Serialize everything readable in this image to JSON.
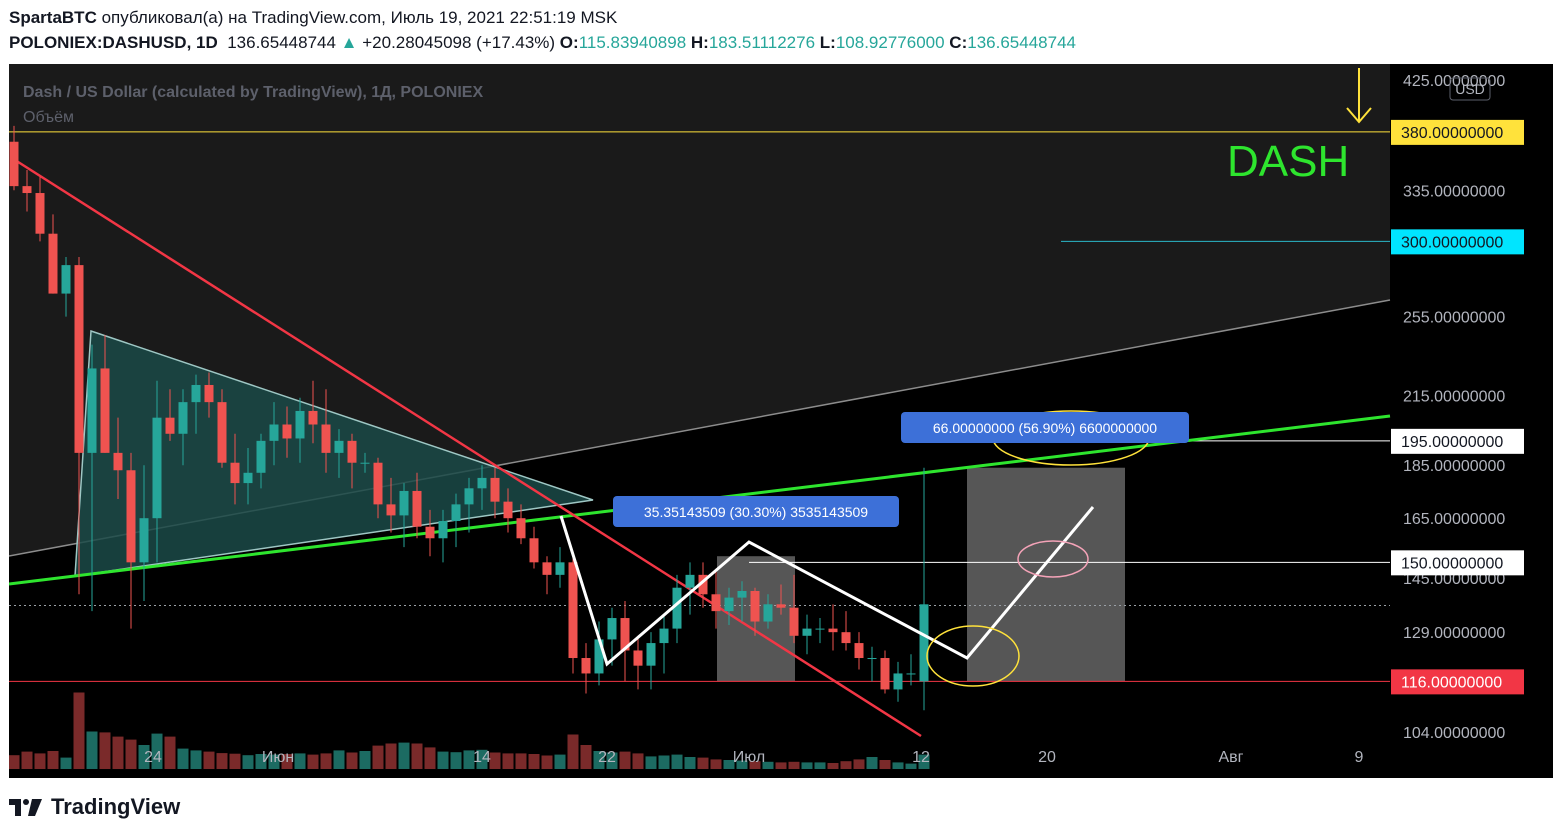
{
  "header": {
    "author": "SpartaBTC",
    "published_text": "опубликовал(а) на TradingView.com, Июль 19, 2021 22:51:19 MSK",
    "symbol": "POLONIEX:DASHUSD, 1D",
    "last_price": "136.65448744",
    "change_arrow": "▲",
    "change": "+20.28045098 (+17.43%)",
    "open_label": "O:",
    "open": "115.83940898",
    "high_label": "H:",
    "high": "183.51112276",
    "low_label": "L:",
    "low": "108.92776000",
    "close_label": "C:",
    "close": "136.65448744"
  },
  "brand": {
    "name": "TradingView"
  },
  "colors": {
    "background": "#000000",
    "up": "#26a69a",
    "down": "#ef5350",
    "resistance_line": "#f23645",
    "support_line": "#2ee52e",
    "label_yellow": "#ffe23b",
    "label_cyan": "#00e5ff",
    "label_red": "#f23645",
    "label_white": "#ffffff",
    "measure_box": "#3d70d8",
    "dash_text": "#2ee52e"
  },
  "chart_data": {
    "type": "candlestick",
    "title": "Dash / US Dollar (calculated by TradingView), 1Д, POLONIEX",
    "volume_label": "Объём",
    "currency": "USD",
    "annotation_text": "DASH",
    "y_axis": {
      "scale": "log",
      "range": [
        96,
        440
      ],
      "ticks": [
        "425.00000000",
        "335.00000000",
        "255.00000000",
        "215.00000000",
        "185.00000000",
        "165.00000000",
        "145.00000000",
        "129.00000000",
        "104.00000000"
      ]
    },
    "x_axis": {
      "ticks": [
        "24",
        "Июн",
        "14",
        "22",
        "Июл",
        "12",
        "20",
        "Авг",
        "9"
      ]
    },
    "price_labels": [
      {
        "text": "380.00000000",
        "value": 380,
        "style": "yellow"
      },
      {
        "text": "300.00000000",
        "value": 300,
        "style": "cyan"
      },
      {
        "text": "195.00000000",
        "value": 195,
        "style": "white"
      },
      {
        "text": "150.00000000",
        "value": 150,
        "style": "white"
      },
      {
        "text": "116.00000000",
        "value": 116,
        "style": "red"
      }
    ],
    "measurements": [
      {
        "text": "35.35143509 (30.30%) 3535143509",
        "from": 116.65,
        "to": 152
      },
      {
        "text": "66.00000000 (56.90%) 6600000000",
        "from": 116,
        "to": 182
      }
    ],
    "candles": [
      [
        372,
        385,
        335,
        338,
        46
      ],
      [
        338,
        350,
        320,
        333,
        58
      ],
      [
        333,
        345,
        300,
        305,
        52
      ],
      [
        305,
        318,
        268,
        268,
        60
      ],
      [
        268,
        290,
        255,
        285,
        38
      ],
      [
        285,
        290,
        140,
        190,
        255
      ],
      [
        190,
        240,
        135,
        228,
        125
      ],
      [
        228,
        245,
        190,
        190,
        122
      ],
      [
        190,
        205,
        172,
        183,
        108
      ],
      [
        183,
        190,
        130,
        150,
        98
      ],
      [
        150,
        185,
        138,
        165,
        80
      ],
      [
        165,
        222,
        150,
        205,
        118
      ],
      [
        205,
        218,
        195,
        198,
        108
      ],
      [
        198,
        218,
        185,
        212,
        68
      ],
      [
        212,
        225,
        198,
        220,
        62
      ],
      [
        220,
        226,
        205,
        212,
        58
      ],
      [
        212,
        218,
        184,
        186,
        53
      ],
      [
        186,
        198,
        170,
        178,
        51
      ],
      [
        178,
        192,
        170,
        182,
        46
      ],
      [
        182,
        198,
        176,
        195,
        50
      ],
      [
        195,
        212,
        185,
        202,
        48
      ],
      [
        202,
        210,
        188,
        196,
        50
      ],
      [
        196,
        214,
        186,
        208,
        52
      ],
      [
        208,
        222,
        194,
        202,
        48
      ],
      [
        202,
        218,
        182,
        190,
        52
      ],
      [
        190,
        200,
        180,
        195,
        62
      ],
      [
        195,
        198,
        176,
        186,
        55
      ],
      [
        186,
        190,
        182,
        186,
        60
      ],
      [
        186,
        188,
        165,
        170,
        78
      ],
      [
        170,
        180,
        160,
        166,
        85
      ],
      [
        166,
        178,
        155,
        175,
        88
      ],
      [
        175,
        182,
        158,
        162,
        85
      ],
      [
        162,
        168,
        152,
        158,
        72
      ],
      [
        158,
        168,
        150,
        164,
        58
      ],
      [
        164,
        174,
        155,
        170,
        56
      ],
      [
        170,
        180,
        160,
        176,
        62
      ],
      [
        176,
        185,
        168,
        180,
        64
      ],
      [
        180,
        184,
        165,
        171,
        55
      ],
      [
        171,
        176,
        160,
        165,
        52
      ],
      [
        165,
        170,
        156,
        158,
        52
      ],
      [
        158,
        162,
        148,
        150,
        50
      ],
      [
        150,
        152,
        140,
        146,
        45
      ],
      [
        146,
        155,
        142,
        150,
        48
      ],
      [
        150,
        152,
        118,
        122,
        115
      ],
      [
        122,
        126,
        113,
        118,
        80
      ],
      [
        118,
        132,
        115,
        127,
        60
      ],
      [
        127,
        136,
        120,
        133,
        55
      ],
      [
        133,
        138,
        116,
        124,
        58
      ],
      [
        124,
        128,
        114,
        120,
        52
      ],
      [
        120,
        129,
        114,
        126,
        42
      ],
      [
        126,
        134,
        118,
        130,
        45
      ],
      [
        130,
        146,
        126,
        142,
        48
      ],
      [
        142,
        150,
        134,
        146,
        40
      ],
      [
        146,
        150,
        136,
        140,
        38
      ],
      [
        140,
        148,
        130,
        135,
        32
      ],
      [
        135,
        142,
        131,
        139,
        30
      ],
      [
        139,
        144,
        132,
        141,
        28
      ],
      [
        141,
        142,
        128,
        132,
        26
      ],
      [
        132,
        140,
        130,
        137,
        24
      ],
      [
        137,
        143,
        134,
        136,
        22
      ],
      [
        136,
        146,
        126,
        128,
        24
      ],
      [
        128,
        134,
        123,
        130,
        22
      ],
      [
        130,
        133,
        126,
        130,
        22
      ],
      [
        130,
        137,
        124,
        129,
        20
      ],
      [
        129,
        135,
        124,
        126,
        26
      ],
      [
        126,
        129,
        119,
        122,
        32
      ],
      [
        122,
        125,
        116,
        122,
        40
      ],
      [
        122,
        124,
        113,
        114,
        30
      ],
      [
        114,
        121,
        111,
        118,
        22
      ],
      [
        118,
        123,
        115,
        118,
        18
      ],
      [
        116,
        184,
        109,
        137,
        48
      ]
    ],
    "candle_fields": [
      "open",
      "high",
      "low",
      "close",
      "volume"
    ]
  }
}
